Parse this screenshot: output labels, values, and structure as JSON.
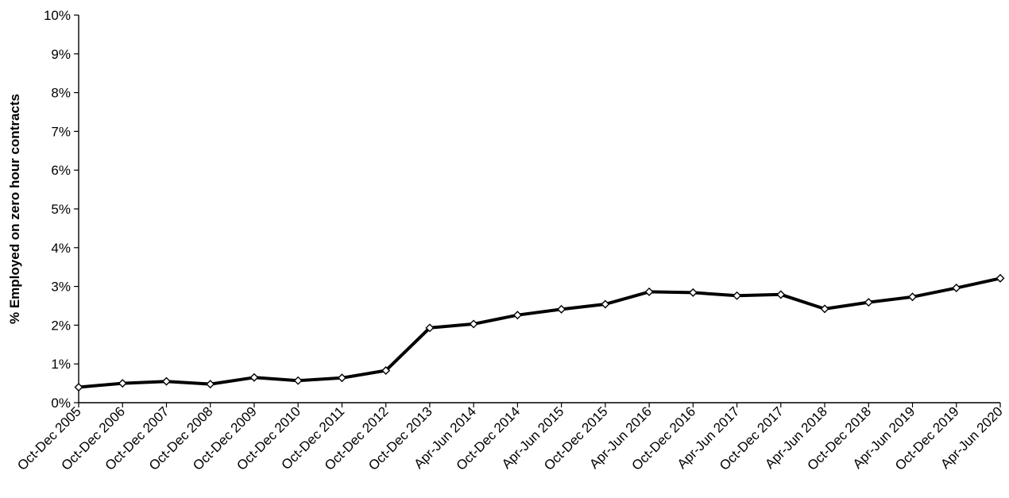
{
  "chart_data": {
    "type": "line",
    "title": "",
    "xlabel": "",
    "ylabel": "% Employed on zero hour contracts",
    "ylim": [
      0,
      10
    ],
    "y_tick_values": [
      0,
      1,
      2,
      3,
      4,
      5,
      6,
      7,
      8,
      9,
      10
    ],
    "y_tick_labels": [
      "0%",
      "1%",
      "2%",
      "3%",
      "4%",
      "5%",
      "6%",
      "7%",
      "8%",
      "9%",
      "10%"
    ],
    "y_unit": "%",
    "grid": false,
    "legend": "none",
    "categories": [
      "Oct-Dec 2005",
      "Oct-Dec 2006",
      "Oct-Dec 2007",
      "Oct-Dec 2008",
      "Oct-Dec 2009",
      "Oct-Dec 2010",
      "Oct-Dec 2011",
      "Oct-Dec 2012",
      "Oct-Dec 2013",
      "Apr-Jun 2014",
      "Oct-Dec 2014",
      "Apr-Jun 2015",
      "Oct-Dec 2015",
      "Apr-Jun 2016",
      "Oct-Dec 2016",
      "Apr-Jun 2017",
      "Oct-Dec 2017",
      "Apr-Jun 2018",
      "Oct-Dec 2018",
      "Apr-Jun 2019",
      "Oct-Dec 2019",
      "Apr-Jun 2020"
    ],
    "series": [
      {
        "values": [
          0.4,
          0.5,
          0.55,
          0.48,
          0.65,
          0.57,
          0.64,
          0.83,
          1.93,
          2.03,
          2.26,
          2.41,
          2.54,
          2.86,
          2.84,
          2.76,
          2.79,
          2.42,
          2.59,
          2.73,
          2.96,
          3.21
        ],
        "line_color": "#000000",
        "marker": "diamond",
        "marker_fill": "#ffffff"
      }
    ]
  }
}
